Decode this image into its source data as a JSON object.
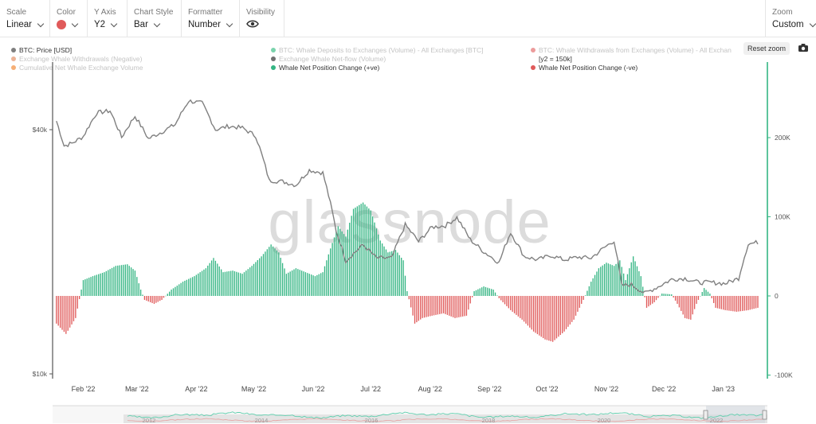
{
  "toolbar": {
    "scale": {
      "label": "Scale",
      "value": "Linear"
    },
    "color": {
      "label": "Color",
      "swatch": "#e05a5a"
    },
    "yaxis": {
      "label": "Y Axis",
      "value": "Y2"
    },
    "chart_style": {
      "label": "Chart Style",
      "value": "Bar"
    },
    "formatter": {
      "label": "Formatter",
      "value": "Number"
    },
    "visibility": {
      "label": "Visibility",
      "icon": "eye-icon"
    },
    "zoom": {
      "label": "Zoom",
      "value": "Custom"
    }
  },
  "legend": [
    {
      "label": "BTC: Price [USD]",
      "color": "#7f7f7f",
      "active": true
    },
    {
      "label": "BTC: Whale Deposits to Exchanges (Volume) - All Exchanges [BTC]",
      "color": "#21b574",
      "active": false
    },
    {
      "label": "BTC: Whale Withdrawals from Exchanges (Volume) - All Exchan",
      "color": "#e05a5a",
      "active": false
    },
    {
      "label": "Exchange Whale Withdrawals (Negative)",
      "color": "#e08050",
      "active": false
    },
    {
      "label": "Exchange Whale Net-flow (Volume)",
      "color": "#111111",
      "active": false
    },
    {
      "label": "Cumulative Net Whale Exchange Volume",
      "color": "#f07a1a",
      "active": false
    },
    {
      "label": "Whale Net Position Change (+ve)",
      "color": "#34b583",
      "active": true
    },
    {
      "label": "Whale Net Position Change (-ve)",
      "color": "#e05a5a",
      "active": true
    }
  ],
  "y2_note": "[y2 = 150k]",
  "reset_label": "Reset zoom",
  "watermark": "glassnode",
  "chart_data": {
    "type": "bar",
    "title": "",
    "x_ticks": [
      "Feb '22",
      "Mar '22",
      "Apr '22",
      "May '22",
      "Jun '22",
      "Jul '22",
      "Aug '22",
      "Sep '22",
      "Oct '22",
      "Nov '22",
      "Dec '22",
      "Jan '23"
    ],
    "left_axis": {
      "scale": "log",
      "ticks": [
        "$40k",
        "$10k"
      ]
    },
    "right_axis": {
      "ticks": [
        "200K",
        "100K",
        "0",
        "-100K"
      ],
      "range": [
        -100000,
        300000
      ]
    },
    "price_series": {
      "name": "BTC: Price [USD]",
      "color": "#808080",
      "points": [
        [
          "2022-01-18",
          42000
        ],
        [
          "2022-01-22",
          36500
        ],
        [
          "2022-01-26",
          37000
        ],
        [
          "2022-02-01",
          38500
        ],
        [
          "2022-02-08",
          44000
        ],
        [
          "2022-02-15",
          44500
        ],
        [
          "2022-02-21",
          38300
        ],
        [
          "2022-02-28",
          43200
        ],
        [
          "2022-03-07",
          38000
        ],
        [
          "2022-03-14",
          39500
        ],
        [
          "2022-03-21",
          41200
        ],
        [
          "2022-03-28",
          47100
        ],
        [
          "2022-04-04",
          46500
        ],
        [
          "2022-04-11",
          40000
        ],
        [
          "2022-04-18",
          40800
        ],
        [
          "2022-04-25",
          40400
        ],
        [
          "2022-05-02",
          38600
        ],
        [
          "2022-05-09",
          30000
        ],
        [
          "2022-05-16",
          29800
        ],
        [
          "2022-05-23",
          29200
        ],
        [
          "2022-05-30",
          31800
        ],
        [
          "2022-06-06",
          31300
        ],
        [
          "2022-06-13",
          22500
        ],
        [
          "2022-06-18",
          19000
        ],
        [
          "2022-06-27",
          20800
        ],
        [
          "2022-07-04",
          19300
        ],
        [
          "2022-07-12",
          19300
        ],
        [
          "2022-07-19",
          23300
        ],
        [
          "2022-07-26",
          21200
        ],
        [
          "2022-08-02",
          23000
        ],
        [
          "2022-08-09",
          23200
        ],
        [
          "2022-08-15",
          24300
        ],
        [
          "2022-08-22",
          21400
        ],
        [
          "2022-08-29",
          20000
        ],
        [
          "2022-09-06",
          18800
        ],
        [
          "2022-09-12",
          22300
        ],
        [
          "2022-09-19",
          19500
        ],
        [
          "2022-09-26",
          19100
        ],
        [
          "2022-10-03",
          19600
        ],
        [
          "2022-10-10",
          19100
        ],
        [
          "2022-10-17",
          19400
        ],
        [
          "2022-10-24",
          19300
        ],
        [
          "2022-10-31",
          20500
        ],
        [
          "2022-11-05",
          21300
        ],
        [
          "2022-11-09",
          16500
        ],
        [
          "2022-11-14",
          16600
        ],
        [
          "2022-11-21",
          15800
        ],
        [
          "2022-11-28",
          16400
        ],
        [
          "2022-12-05",
          17100
        ],
        [
          "2022-12-12",
          17200
        ],
        [
          "2022-12-19",
          16800
        ],
        [
          "2022-12-26",
          16800
        ],
        [
          "2023-01-02",
          16700
        ],
        [
          "2023-01-09",
          17200
        ],
        [
          "2023-01-14",
          20900
        ],
        [
          "2023-01-19",
          21100
        ]
      ]
    },
    "net_position_change": {
      "positive_name": "Whale Net Position Change (+ve)",
      "negative_name": "Whale Net Position Change (-ve)",
      "positive_color": "#34b583",
      "negative_color": "#e05a5a",
      "points": [
        [
          "2022-01-18",
          -35000
        ],
        [
          "2022-01-23",
          -48000
        ],
        [
          "2022-01-28",
          -28000
        ],
        [
          "2022-02-01",
          20000
        ],
        [
          "2022-02-06",
          25000
        ],
        [
          "2022-02-12",
          30000
        ],
        [
          "2022-02-18",
          38000
        ],
        [
          "2022-02-24",
          40000
        ],
        [
          "2022-02-28",
          32000
        ],
        [
          "2022-03-03",
          8000
        ],
        [
          "2022-03-05",
          -5000
        ],
        [
          "2022-03-10",
          -10000
        ],
        [
          "2022-03-14",
          -5000
        ],
        [
          "2022-03-19",
          8000
        ],
        [
          "2022-03-25",
          18000
        ],
        [
          "2022-03-31",
          25000
        ],
        [
          "2022-04-06",
          35000
        ],
        [
          "2022-04-10",
          48000
        ],
        [
          "2022-04-15",
          30000
        ],
        [
          "2022-04-20",
          32000
        ],
        [
          "2022-04-25",
          28000
        ],
        [
          "2022-04-30",
          38000
        ],
        [
          "2022-05-05",
          50000
        ],
        [
          "2022-05-10",
          65000
        ],
        [
          "2022-05-14",
          55000
        ],
        [
          "2022-05-18",
          28000
        ],
        [
          "2022-05-23",
          35000
        ],
        [
          "2022-05-28",
          30000
        ],
        [
          "2022-06-02",
          25000
        ],
        [
          "2022-06-06",
          30000
        ],
        [
          "2022-06-10",
          60000
        ],
        [
          "2022-06-14",
          88000
        ],
        [
          "2022-06-18",
          75000
        ],
        [
          "2022-06-22",
          110000
        ],
        [
          "2022-06-27",
          118000
        ],
        [
          "2022-07-01",
          108000
        ],
        [
          "2022-07-06",
          70000
        ],
        [
          "2022-07-10",
          55000
        ],
        [
          "2022-07-14",
          58000
        ],
        [
          "2022-07-18",
          45000
        ],
        [
          "2022-07-20",
          6000
        ],
        [
          "2022-07-24",
          -35000
        ],
        [
          "2022-07-28",
          -28000
        ],
        [
          "2022-08-02",
          -25000
        ],
        [
          "2022-08-08",
          -22000
        ],
        [
          "2022-08-14",
          -28000
        ],
        [
          "2022-08-20",
          -25000
        ],
        [
          "2022-08-24",
          6000
        ],
        [
          "2022-08-29",
          12000
        ],
        [
          "2022-09-03",
          8000
        ],
        [
          "2022-09-06",
          -3000
        ],
        [
          "2022-09-12",
          -18000
        ],
        [
          "2022-09-18",
          -30000
        ],
        [
          "2022-09-24",
          -45000
        ],
        [
          "2022-09-30",
          -55000
        ],
        [
          "2022-10-04",
          -58000
        ],
        [
          "2022-10-10",
          -45000
        ],
        [
          "2022-10-15",
          -30000
        ],
        [
          "2022-10-20",
          -5000
        ],
        [
          "2022-10-24",
          18000
        ],
        [
          "2022-10-28",
          35000
        ],
        [
          "2022-11-01",
          42000
        ],
        [
          "2022-11-05",
          38000
        ],
        [
          "2022-11-08",
          45000
        ],
        [
          "2022-11-11",
          20000
        ],
        [
          "2022-11-15",
          50000
        ],
        [
          "2022-11-19",
          25000
        ],
        [
          "2022-11-22",
          -15000
        ],
        [
          "2022-11-26",
          -8000
        ],
        [
          "2022-11-30",
          3000
        ],
        [
          "2022-12-05",
          2000
        ],
        [
          "2022-12-08",
          -10000
        ],
        [
          "2022-12-12",
          -28000
        ],
        [
          "2022-12-15",
          -30000
        ],
        [
          "2022-12-18",
          -10000
        ],
        [
          "2022-12-22",
          10000
        ],
        [
          "2022-12-25",
          3000
        ],
        [
          "2022-12-28",
          -15000
        ],
        [
          "2023-01-02",
          -18000
        ],
        [
          "2023-01-08",
          -20000
        ],
        [
          "2023-01-14",
          -18000
        ],
        [
          "2023-01-19",
          -15000
        ]
      ]
    },
    "navigator": {
      "year_ticks": [
        "2012",
        "2014",
        "2016",
        "2018",
        "2020",
        "2022"
      ]
    },
    "grid": false
  }
}
